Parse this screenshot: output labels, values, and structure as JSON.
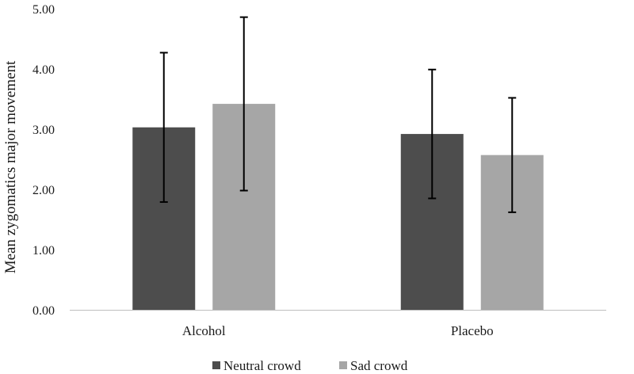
{
  "chart_data": {
    "type": "bar",
    "title": "",
    "xlabel": "",
    "ylabel": "Mean zygomatics major movement",
    "ylim": [
      0,
      5
    ],
    "yticks": [
      "0.00",
      "1.00",
      "2.00",
      "3.00",
      "4.00",
      "5.00"
    ],
    "ytick_values": [
      0,
      1,
      2,
      3,
      4,
      5
    ],
    "categories": [
      "Alcohol",
      "Placebo"
    ],
    "series": [
      {
        "name": "Neutral crowd",
        "color": "#4d4d4d",
        "values": [
          3.03,
          2.92
        ],
        "error": [
          1.24,
          1.07
        ]
      },
      {
        "name": "Sad crowd",
        "color": "#a6a6a6",
        "values": [
          3.42,
          2.57
        ],
        "error": [
          1.44,
          0.95
        ]
      }
    ],
    "legend_position": "bottom-center",
    "grid": false
  }
}
